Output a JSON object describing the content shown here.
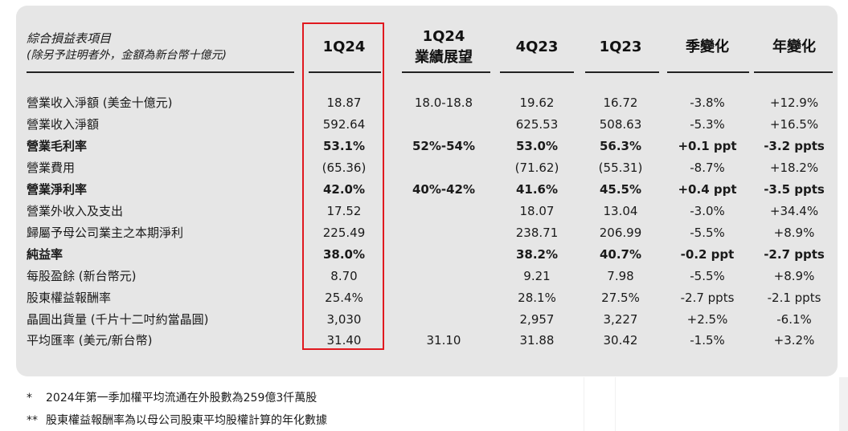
{
  "header": {
    "title": "綜合損益表項目",
    "subtitle": "(除另予註明者外，金額為新台幣十億元)"
  },
  "columns": {
    "c1q24": "1Q24",
    "guidance_line1": "1Q24",
    "guidance_line2": "業績展望",
    "c4q23": "4Q23",
    "c1q23": "1Q23",
    "qoq": "季變化",
    "yoy": "年變化"
  },
  "rows": [
    {
      "label": "營業收入淨額 (美金十億元)",
      "c1q24": "18.87",
      "guidance": "18.0-18.8",
      "c4q23": "19.62",
      "c1q23": "16.72",
      "qoq": "-3.8%",
      "yoy": "+12.9%"
    },
    {
      "label": "營業收入淨額",
      "c1q24": "592.64",
      "guidance": "",
      "c4q23": "625.53",
      "c1q23": "508.63",
      "qoq": "-5.3%",
      "yoy": "+16.5%"
    },
    {
      "label": "營業毛利率",
      "c1q24": "53.1%",
      "guidance": "52%-54%",
      "c4q23": "53.0%",
      "c1q23": "56.3%",
      "qoq": "+0.1 ppt",
      "yoy": "-3.2 ppts"
    },
    {
      "label": "營業費用",
      "c1q24": "(65.36)",
      "guidance": "",
      "c4q23": "(71.62)",
      "c1q23": "(55.31)",
      "qoq": "-8.7%",
      "yoy": "+18.2%"
    },
    {
      "label": "營業淨利率",
      "c1q24": "42.0%",
      "guidance": "40%-42%",
      "c4q23": "41.6%",
      "c1q23": "45.5%",
      "qoq": "+0.4 ppt",
      "yoy": "-3.5 ppts"
    },
    {
      "label": "營業外收入及支出",
      "c1q24": "17.52",
      "guidance": "",
      "c4q23": "18.07",
      "c1q23": "13.04",
      "qoq": "-3.0%",
      "yoy": "+34.4%"
    },
    {
      "label": "歸屬予母公司業主之本期淨利",
      "c1q24": "225.49",
      "guidance": "",
      "c4q23": "238.71",
      "c1q23": "206.99",
      "qoq": "-5.5%",
      "yoy": "+8.9%"
    },
    {
      "label": "純益率",
      "c1q24": "38.0%",
      "guidance": "",
      "c4q23": "38.2%",
      "c1q23": "40.7%",
      "qoq": "-0.2 ppt",
      "yoy": "-2.7 ppts"
    },
    {
      "label": "每股盈餘 (新台幣元)",
      "c1q24": "8.70",
      "guidance": "",
      "c4q23": "9.21",
      "c1q23": "7.98",
      "qoq": "-5.5%",
      "yoy": "+8.9%"
    },
    {
      "label": "股東權益報酬率",
      "c1q24": "25.4%",
      "guidance": "",
      "c4q23": "28.1%",
      "c1q23": "27.5%",
      "qoq": "-2.7 ppts",
      "yoy": "-2.1 ppts"
    },
    {
      "label": "晶圓出貨量 (千片十二吋約當晶圓)",
      "c1q24": "3,030",
      "guidance": "",
      "c4q23": "2,957",
      "c1q23": "3,227",
      "qoq": "+2.5%",
      "yoy": "-6.1%"
    },
    {
      "label": "平均匯率 (美元/新台幣)",
      "c1q24": "31.40",
      "guidance": "31.10",
      "c4q23": "31.88",
      "c1q23": "30.42",
      "qoq": "-1.5%",
      "yoy": "+3.2%"
    }
  ],
  "bold_rows": [
    2,
    4,
    7
  ],
  "footnotes": [
    {
      "mark": "*",
      "text": "2024年第一季加權平均流通在外股數為259億3仟萬股"
    },
    {
      "mark": "**",
      "text": "股東權益報酬率為以母公司股東平均股權計算的年化數據"
    }
  ],
  "colors": {
    "panel": "#e6e6e6",
    "highlight": "#e0191f",
    "text": "#1a1a1a"
  }
}
